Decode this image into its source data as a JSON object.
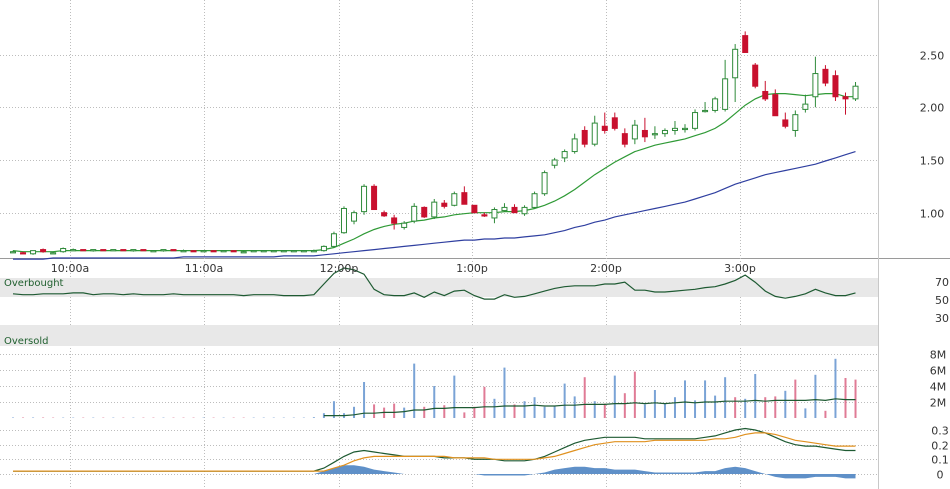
{
  "chart_data": [
    {
      "type": "candlestick",
      "x_tick_labels": [
        "10:00a",
        "11:00a",
        "12:00p",
        "1:00p",
        "2:00p",
        "3:00p"
      ],
      "y_tick_labels": [
        "2.50",
        "2.00",
        "1.50",
        "1.00"
      ],
      "ylim": [
        0.57,
        2.98
      ],
      "candles": [
        [
          0.63,
          0.64,
          0.62,
          0.63
        ],
        [
          0.62,
          0.63,
          0.61,
          0.61
        ],
        [
          0.61,
          0.64,
          0.6,
          0.64
        ],
        [
          0.65,
          0.66,
          0.62,
          0.63
        ],
        [
          0.62,
          0.63,
          0.61,
          0.62
        ],
        [
          0.63,
          0.67,
          0.62,
          0.66
        ],
        [
          0.65,
          0.66,
          0.64,
          0.65
        ],
        [
          0.65,
          0.65,
          0.64,
          0.64
        ],
        [
          0.64,
          0.65,
          0.63,
          0.65
        ],
        [
          0.65,
          0.65,
          0.64,
          0.64
        ],
        [
          0.64,
          0.65,
          0.64,
          0.65
        ],
        [
          0.65,
          0.65,
          0.64,
          0.64
        ],
        [
          0.64,
          0.65,
          0.63,
          0.65
        ],
        [
          0.65,
          0.65,
          0.64,
          0.64
        ],
        [
          0.64,
          0.64,
          0.63,
          0.64
        ],
        [
          0.64,
          0.65,
          0.63,
          0.65
        ],
        [
          0.65,
          0.65,
          0.64,
          0.64
        ],
        [
          0.64,
          0.65,
          0.63,
          0.64
        ],
        [
          0.64,
          0.64,
          0.63,
          0.63
        ],
        [
          0.63,
          0.64,
          0.63,
          0.64
        ],
        [
          0.64,
          0.64,
          0.63,
          0.63
        ],
        [
          0.63,
          0.64,
          0.63,
          0.64
        ],
        [
          0.64,
          0.64,
          0.63,
          0.63
        ],
        [
          0.63,
          0.64,
          0.62,
          0.63
        ],
        [
          0.63,
          0.64,
          0.63,
          0.64
        ],
        [
          0.64,
          0.64,
          0.63,
          0.64
        ],
        [
          0.64,
          0.64,
          0.63,
          0.64
        ],
        [
          0.64,
          0.64,
          0.63,
          0.64
        ],
        [
          0.64,
          0.64,
          0.63,
          0.64
        ],
        [
          0.64,
          0.64,
          0.63,
          0.64
        ],
        [
          0.64,
          0.65,
          0.63,
          0.64
        ],
        [
          0.64,
          0.69,
          0.63,
          0.68
        ],
        [
          0.68,
          0.82,
          0.67,
          0.8
        ],
        [
          0.81,
          1.06,
          0.8,
          1.04
        ],
        [
          0.92,
          1.02,
          0.89,
          1.0
        ],
        [
          1.01,
          1.27,
          0.98,
          1.25
        ],
        [
          1.25,
          1.27,
          1.03,
          1.03
        ],
        [
          1.0,
          1.02,
          0.96,
          0.97
        ],
        [
          0.95,
          0.98,
          0.84,
          0.9
        ],
        [
          0.86,
          0.92,
          0.84,
          0.9
        ],
        [
          0.92,
          1.09,
          0.9,
          1.06
        ],
        [
          1.05,
          1.06,
          0.95,
          0.96
        ],
        [
          0.96,
          1.13,
          0.94,
          1.1
        ],
        [
          1.09,
          1.12,
          1.04,
          1.06
        ],
        [
          1.07,
          1.2,
          1.06,
          1.18
        ],
        [
          1.19,
          1.25,
          1.08,
          1.08
        ],
        [
          1.07,
          1.07,
          1.0,
          1.0
        ],
        [
          0.98,
          1.0,
          0.96,
          0.97
        ],
        [
          0.95,
          1.05,
          0.9,
          1.03
        ],
        [
          1.02,
          1.09,
          1.01,
          1.05
        ],
        [
          1.05,
          1.08,
          1.0,
          1.0
        ],
        [
          0.99,
          1.07,
          0.97,
          1.05
        ],
        [
          1.05,
          1.2,
          1.04,
          1.18
        ],
        [
          1.18,
          1.4,
          1.16,
          1.38
        ],
        [
          1.45,
          1.52,
          1.42,
          1.5
        ],
        [
          1.52,
          1.6,
          1.48,
          1.58
        ],
        [
          1.58,
          1.75,
          1.56,
          1.7
        ],
        [
          1.78,
          1.82,
          1.62,
          1.65
        ],
        [
          1.65,
          1.92,
          1.63,
          1.85
        ],
        [
          1.82,
          1.95,
          1.75,
          1.78
        ],
        [
          1.9,
          1.95,
          1.78,
          1.8
        ],
        [
          1.75,
          1.8,
          1.62,
          1.65
        ],
        [
          1.7,
          1.88,
          1.65,
          1.83
        ],
        [
          1.78,
          1.9,
          1.67,
          1.72
        ],
        [
          1.74,
          1.82,
          1.7,
          1.75
        ],
        [
          1.75,
          1.8,
          1.72,
          1.78
        ],
        [
          1.78,
          1.87,
          1.74,
          1.8
        ],
        [
          1.79,
          1.84,
          1.76,
          1.8
        ],
        [
          1.8,
          1.98,
          1.78,
          1.95
        ],
        [
          1.97,
          2.05,
          1.95,
          1.97
        ],
        [
          1.97,
          2.1,
          1.95,
          2.08
        ],
        [
          1.98,
          2.45,
          1.96,
          2.27
        ],
        [
          2.28,
          2.6,
          2.05,
          2.55
        ],
        [
          2.68,
          2.72,
          2.52,
          2.52
        ],
        [
          2.4,
          2.42,
          2.18,
          2.2
        ],
        [
          2.15,
          2.25,
          2.06,
          2.08
        ],
        [
          2.12,
          2.17,
          1.92,
          1.92
        ],
        [
          1.88,
          1.95,
          1.8,
          1.82
        ],
        [
          1.78,
          1.97,
          1.72,
          1.93
        ],
        [
          1.98,
          2.12,
          1.95,
          2.03
        ],
        [
          2.1,
          2.48,
          2.0,
          2.32
        ],
        [
          2.36,
          2.4,
          2.2,
          2.23
        ],
        [
          2.3,
          2.35,
          2.06,
          2.1
        ],
        [
          2.1,
          2.14,
          1.93,
          2.08
        ],
        [
          2.08,
          2.24,
          2.06,
          2.2
        ]
      ],
      "ma_short": [
        0.64,
        0.63,
        0.63,
        0.63,
        0.63,
        0.64,
        0.64,
        0.64,
        0.64,
        0.64,
        0.64,
        0.64,
        0.64,
        0.64,
        0.64,
        0.64,
        0.64,
        0.64,
        0.64,
        0.64,
        0.64,
        0.64,
        0.64,
        0.64,
        0.64,
        0.64,
        0.64,
        0.64,
        0.64,
        0.64,
        0.64,
        0.65,
        0.67,
        0.71,
        0.75,
        0.8,
        0.84,
        0.87,
        0.89,
        0.9,
        0.92,
        0.93,
        0.95,
        0.96,
        0.98,
        0.99,
        1.0,
        1.0,
        1.0,
        1.01,
        1.01,
        1.02,
        1.04,
        1.07,
        1.11,
        1.16,
        1.22,
        1.29,
        1.36,
        1.42,
        1.48,
        1.53,
        1.58,
        1.61,
        1.64,
        1.66,
        1.68,
        1.7,
        1.73,
        1.76,
        1.8,
        1.86,
        1.94,
        2.02,
        2.08,
        2.12,
        2.13,
        2.13,
        2.12,
        2.11,
        2.12,
        2.13,
        2.13,
        2.1,
        2.1
      ],
      "ma_long": [
        0.56,
        0.56,
        0.56,
        0.56,
        0.57,
        0.57,
        0.57,
        0.57,
        0.57,
        0.57,
        0.57,
        0.57,
        0.57,
        0.57,
        0.57,
        0.57,
        0.57,
        0.58,
        0.58,
        0.58,
        0.58,
        0.58,
        0.58,
        0.58,
        0.58,
        0.58,
        0.58,
        0.59,
        0.59,
        0.59,
        0.59,
        0.6,
        0.61,
        0.62,
        0.63,
        0.64,
        0.65,
        0.66,
        0.67,
        0.68,
        0.69,
        0.7,
        0.71,
        0.72,
        0.73,
        0.74,
        0.74,
        0.75,
        0.75,
        0.76,
        0.76,
        0.77,
        0.78,
        0.79,
        0.81,
        0.83,
        0.86,
        0.88,
        0.91,
        0.93,
        0.96,
        0.98,
        1.0,
        1.02,
        1.04,
        1.06,
        1.08,
        1.1,
        1.13,
        1.16,
        1.19,
        1.23,
        1.27,
        1.3,
        1.33,
        1.36,
        1.38,
        1.4,
        1.42,
        1.44,
        1.46,
        1.49,
        1.52,
        1.55,
        1.58
      ]
    },
    {
      "type": "line",
      "zone_labels": [
        "Overbought",
        "Oversold"
      ],
      "y_tick_labels": [
        "70",
        "50",
        "30"
      ],
      "ylim": [
        5,
        95
      ],
      "overbought": 70,
      "oversold": 30,
      "values": [
        57,
        56,
        56,
        57,
        57,
        57,
        58,
        58,
        56,
        57,
        57,
        56,
        57,
        56,
        56,
        56,
        57,
        56,
        56,
        56,
        56,
        56,
        56,
        55,
        56,
        56,
        56,
        55,
        55,
        55,
        56,
        68,
        80,
        86,
        84,
        79,
        62,
        56,
        55,
        55,
        58,
        53,
        59,
        55,
        60,
        61,
        55,
        51,
        51,
        56,
        53,
        54,
        57,
        60,
        63,
        65,
        66,
        66,
        66,
        68,
        68,
        70,
        61,
        61,
        59,
        59,
        60,
        61,
        62,
        64,
        65,
        68,
        72,
        78,
        70,
        60,
        54,
        52,
        54,
        57,
        62,
        58,
        55,
        55,
        58
      ]
    },
    {
      "type": "bar",
      "y_tick_labels": [
        "8M",
        "6M",
        "4M",
        "2M"
      ],
      "ylim": [
        0,
        9
      ],
      "bar_colors": {
        "up": "#7aa3d6",
        "down": "#e07b96"
      },
      "values": [
        0.06,
        0.06,
        0.06,
        0.06,
        0.05,
        0.05,
        0.05,
        0.05,
        0.05,
        0.05,
        0.05,
        0.05,
        0.05,
        0.05,
        0.05,
        0.05,
        0.05,
        0.05,
        0.05,
        0.05,
        0.05,
        0.05,
        0.05,
        0.05,
        0.05,
        0.05,
        0.05,
        0.05,
        0.05,
        0.05,
        0.1,
        0.6,
        2.1,
        0.6,
        1.4,
        4.5,
        1.7,
        1.3,
        1.8,
        1.3,
        6.8,
        1.4,
        4.0,
        1.6,
        5.3,
        0.7,
        1.4,
        3.9,
        2.4,
        6.3,
        1.7,
        2.1,
        2.6,
        1.4,
        1.5,
        4.3,
        2.7,
        5.1,
        2.1,
        1.8,
        5.3,
        3.1,
        5.8,
        1.7,
        3.5,
        1.8,
        2.6,
        4.7,
        2.2,
        4.7,
        2.8,
        5.1,
        2.6,
        2.4,
        5.5,
        2.6,
        2.7,
        3.4,
        4.8,
        1.2,
        5.4,
        0.9,
        7.4,
        5.0,
        4.8
      ],
      "colors": [
        "u",
        "d",
        "u",
        "d",
        "d",
        "u",
        "u",
        "d",
        "u",
        "d",
        "u",
        "d",
        "u",
        "d",
        "d",
        "u",
        "d",
        "d",
        "d",
        "u",
        "d",
        "u",
        "d",
        "d",
        "u",
        "u",
        "u",
        "u",
        "u",
        "u",
        "u",
        "u",
        "u",
        "u",
        "u",
        "u",
        "d",
        "d",
        "d",
        "u",
        "u",
        "d",
        "u",
        "d",
        "u",
        "d",
        "d",
        "d",
        "u",
        "u",
        "d",
        "u",
        "u",
        "u",
        "u",
        "u",
        "u",
        "d",
        "u",
        "d",
        "u",
        "d",
        "d",
        "u",
        "u",
        "u",
        "u",
        "u",
        "u",
        "u",
        "u",
        "u",
        "d",
        "u",
        "u",
        "d",
        "d",
        "u",
        "d",
        "u",
        "u",
        "d",
        "u",
        "d",
        "d"
      ],
      "avg_line": [
        0,
        0,
        0,
        0,
        0,
        0,
        0,
        0,
        0,
        0,
        0,
        0,
        0,
        0,
        0,
        0,
        0,
        0,
        0,
        0,
        0,
        0,
        0,
        0,
        0,
        0,
        0,
        0,
        0,
        0,
        0,
        0,
        0.3,
        0.3,
        0.4,
        0.6,
        0.6,
        0.7,
        0.7,
        0.8,
        1.0,
        1.0,
        1.2,
        1.2,
        1.3,
        1.3,
        1.3,
        1.4,
        1.4,
        1.5,
        1.5,
        1.5,
        1.6,
        1.5,
        1.5,
        1.6,
        1.6,
        1.7,
        1.7,
        1.7,
        1.8,
        1.8,
        1.9,
        1.8,
        1.9,
        1.8,
        1.9,
        2.0,
        1.9,
        2.0,
        2.0,
        2.1,
        2.1,
        2.1,
        2.2,
        2.1,
        2.2,
        2.2,
        2.2,
        2.2,
        2.3,
        2.2,
        2.4,
        2.3,
        2.3
      ]
    },
    {
      "type": "line",
      "y_tick_labels": [
        "0.3",
        "0.2",
        "0.1",
        "0"
      ],
      "ylim": [
        -0.05,
        0.36
      ],
      "series": [
        {
          "color": "#1e5a32",
          "values": [
            0.02,
            0.02,
            0.02,
            0.02,
            0.02,
            0.02,
            0.02,
            0.02,
            0.02,
            0.02,
            0.02,
            0.02,
            0.02,
            0.02,
            0.02,
            0.02,
            0.02,
            0.02,
            0.02,
            0.02,
            0.02,
            0.02,
            0.02,
            0.02,
            0.02,
            0.02,
            0.02,
            0.02,
            0.02,
            0.02,
            0.02,
            0.04,
            0.08,
            0.12,
            0.15,
            0.16,
            0.15,
            0.14,
            0.13,
            0.12,
            0.12,
            0.12,
            0.12,
            0.11,
            0.11,
            0.11,
            0.1,
            0.1,
            0.1,
            0.09,
            0.09,
            0.09,
            0.1,
            0.12,
            0.15,
            0.18,
            0.21,
            0.23,
            0.24,
            0.25,
            0.25,
            0.25,
            0.25,
            0.24,
            0.24,
            0.24,
            0.24,
            0.24,
            0.24,
            0.25,
            0.26,
            0.28,
            0.3,
            0.31,
            0.3,
            0.28,
            0.25,
            0.22,
            0.2,
            0.19,
            0.19,
            0.18,
            0.17,
            0.16,
            0.16
          ]
        },
        {
          "color": "#e0911f",
          "values": [
            0.02,
            0.02,
            0.02,
            0.02,
            0.02,
            0.02,
            0.02,
            0.02,
            0.02,
            0.02,
            0.02,
            0.02,
            0.02,
            0.02,
            0.02,
            0.02,
            0.02,
            0.02,
            0.02,
            0.02,
            0.02,
            0.02,
            0.02,
            0.02,
            0.02,
            0.02,
            0.02,
            0.02,
            0.02,
            0.02,
            0.02,
            0.02,
            0.04,
            0.06,
            0.09,
            0.11,
            0.12,
            0.12,
            0.12,
            0.12,
            0.12,
            0.12,
            0.12,
            0.12,
            0.11,
            0.11,
            0.11,
            0.11,
            0.1,
            0.1,
            0.1,
            0.1,
            0.1,
            0.11,
            0.12,
            0.14,
            0.16,
            0.18,
            0.2,
            0.21,
            0.22,
            0.22,
            0.22,
            0.22,
            0.23,
            0.23,
            0.23,
            0.23,
            0.23,
            0.23,
            0.24,
            0.24,
            0.25,
            0.27,
            0.28,
            0.28,
            0.27,
            0.25,
            0.23,
            0.22,
            0.21,
            0.2,
            0.19,
            0.19,
            0.19
          ]
        }
      ],
      "histogram": [
        0,
        0,
        0,
        0,
        0,
        0,
        0,
        0,
        0,
        0,
        0,
        0,
        0,
        0,
        0,
        0,
        0,
        0,
        0,
        0,
        0,
        0,
        0,
        0,
        0,
        0,
        0,
        0,
        0,
        0,
        0,
        0.02,
        0.04,
        0.06,
        0.06,
        0.05,
        0.03,
        0.02,
        0.01,
        0.0,
        0.0,
        0.0,
        0.0,
        0.0,
        0.0,
        0.0,
        0.0,
        -0.01,
        -0.01,
        -0.01,
        -0.01,
        -0.01,
        0.0,
        0.01,
        0.03,
        0.04,
        0.05,
        0.05,
        0.04,
        0.04,
        0.03,
        0.03,
        0.03,
        0.02,
        0.01,
        0.01,
        0.01,
        0.01,
        0.01,
        0.02,
        0.02,
        0.04,
        0.05,
        0.04,
        0.02,
        0.0,
        -0.02,
        -0.03,
        -0.03,
        -0.03,
        -0.02,
        -0.02,
        -0.02,
        -0.03,
        -0.03
      ]
    }
  ]
}
